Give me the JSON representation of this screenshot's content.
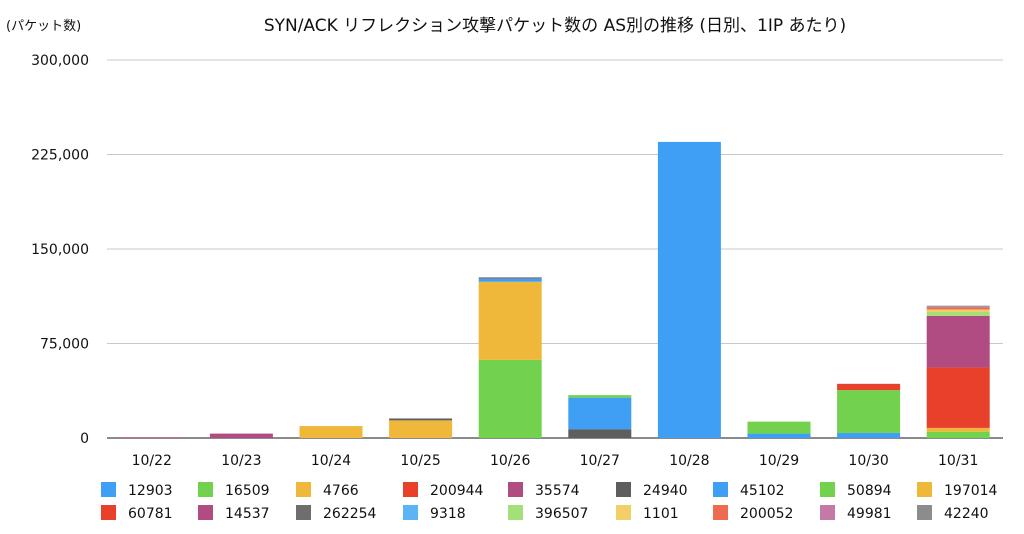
{
  "chart_data": {
    "type": "bar",
    "stacked": true,
    "title": "SYN/ACK リフレクション攻撃パケット数の AS別の推移 (日別、1IP あたり)",
    "ylabel": "(パケット数)",
    "xlabel": "",
    "ylim": [
      0,
      300000
    ],
    "yticks": [
      "0",
      "75,000",
      "150,000",
      "225,000",
      "300,000"
    ],
    "ytick_values": [
      0,
      75000,
      150000,
      225000,
      300000
    ],
    "grid": true,
    "legend_position": "bottom",
    "categories": [
      "10/22",
      "10/23",
      "10/24",
      "10/25",
      "10/26",
      "10/27",
      "10/28",
      "10/29",
      "10/30",
      "10/31"
    ],
    "series": [
      {
        "name": "12903",
        "color": "#3f9ff5",
        "values": [
          0,
          0,
          0,
          0,
          0,
          0,
          235000,
          0,
          0,
          0
        ]
      },
      {
        "name": "16509",
        "color": "#72d24d",
        "values": [
          0,
          0,
          0,
          0,
          62000,
          0,
          0,
          0,
          0,
          0
        ]
      },
      {
        "name": "4766",
        "color": "#f0b83a",
        "values": [
          0,
          0,
          9500,
          14000,
          62000,
          0,
          0,
          0,
          0,
          0
        ]
      },
      {
        "name": "200944",
        "color": "#e9402b",
        "values": [
          0,
          0,
          0,
          0,
          0,
          0,
          0,
          0,
          0,
          0
        ]
      },
      {
        "name": "35574",
        "color": "#b04c82",
        "values": [
          600,
          3500,
          0,
          0,
          0,
          0,
          0,
          0,
          0,
          0
        ]
      },
      {
        "name": "24940",
        "color": "#5e5e5e",
        "values": [
          0,
          0,
          0,
          1500,
          0,
          7000,
          0,
          0,
          0,
          0
        ]
      },
      {
        "name": "45102",
        "color": "#3f9ff5",
        "values": [
          0,
          0,
          0,
          0,
          2500,
          25000,
          0,
          3500,
          4000,
          0
        ]
      },
      {
        "name": "50894",
        "color": "#72d24d",
        "values": [
          0,
          0,
          0,
          0,
          0,
          2000,
          0,
          9500,
          34000,
          5000
        ]
      },
      {
        "name": "197014",
        "color": "#f0b83a",
        "values": [
          0,
          0,
          0,
          0,
          0,
          0,
          0,
          0,
          0,
          3000
        ]
      },
      {
        "name": "60781",
        "color": "#e9402b",
        "values": [
          0,
          0,
          0,
          0,
          0,
          0,
          0,
          0,
          5000,
          48000
        ]
      },
      {
        "name": "14537",
        "color": "#b04c82",
        "values": [
          0,
          0,
          0,
          0,
          0,
          0,
          0,
          0,
          0,
          41000
        ]
      },
      {
        "name": "262254",
        "color": "#6e6e6e",
        "values": [
          0,
          0,
          0,
          0,
          1000,
          0,
          0,
          0,
          0,
          0
        ]
      },
      {
        "name": "9318",
        "color": "#5ab4f5",
        "values": [
          0,
          0,
          0,
          0,
          0,
          0,
          0,
          0,
          0,
          0
        ]
      },
      {
        "name": "396507",
        "color": "#a3e07a",
        "values": [
          0,
          0,
          0,
          0,
          0,
          0,
          0,
          0,
          0,
          3000
        ]
      },
      {
        "name": "1101",
        "color": "#f3d067",
        "values": [
          0,
          0,
          0,
          0,
          0,
          0,
          0,
          0,
          0,
          2000
        ]
      },
      {
        "name": "200052",
        "color": "#ee6a50",
        "values": [
          0,
          0,
          0,
          0,
          0,
          0,
          0,
          0,
          0,
          1500
        ]
      },
      {
        "name": "49981",
        "color": "#c479a6",
        "values": [
          0,
          0,
          0,
          0,
          0,
          0,
          0,
          0,
          0,
          700
        ]
      },
      {
        "name": "42240",
        "color": "#8c8c8c",
        "values": [
          0,
          0,
          0,
          0,
          0,
          0,
          0,
          0,
          0,
          800
        ]
      }
    ]
  }
}
